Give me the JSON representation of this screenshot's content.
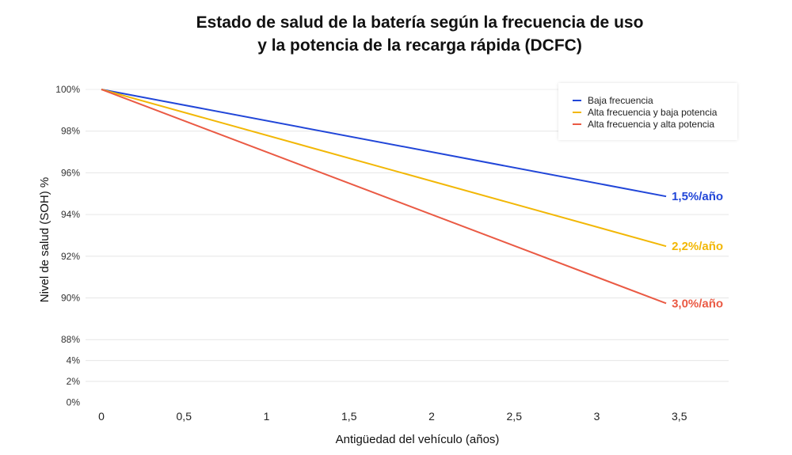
{
  "chart_data": {
    "type": "line",
    "title": [
      "Estado de salud de la batería según la frecuencia de uso",
      "y la potencia de la recarga rápida (DCFC)"
    ],
    "xlabel": "Antigüedad del vehículo (años)",
    "ylabel": "Nivel de salud (SOH) %",
    "x_ticks": [
      "0",
      "0,5",
      "1",
      "1,5",
      "2",
      "2,5",
      "3",
      "3,5"
    ],
    "x_tick_values": [
      0,
      0.5,
      1,
      1.5,
      2,
      2.5,
      3,
      3.5
    ],
    "y_ticks": [
      "100%",
      "98%",
      "96%",
      "94%",
      "92%",
      "90%",
      "88%",
      "4%",
      "2%",
      "0%"
    ],
    "y_tick_values": [
      100,
      98,
      96,
      94,
      92,
      90,
      88,
      4,
      2,
      0
    ],
    "y_axis_broken": true,
    "grid": true,
    "legend_position": "top-right",
    "series": [
      {
        "name": "Baja frecuencia",
        "color": "#2146d8",
        "x": [
          0,
          3.42
        ],
        "y": [
          100,
          94.87
        ],
        "end_label": "1,5%/año"
      },
      {
        "name": "Alta frecuencia y baja potencia",
        "color": "#f2b705",
        "x": [
          0,
          3.42
        ],
        "y": [
          100,
          92.48
        ],
        "end_label": "2,2%/año"
      },
      {
        "name": "Alta frecuencia y alta potencia",
        "color": "#ea5a44",
        "x": [
          0,
          3.42
        ],
        "y": [
          100,
          89.74
        ],
        "end_label": "3,0%/año"
      }
    ]
  }
}
